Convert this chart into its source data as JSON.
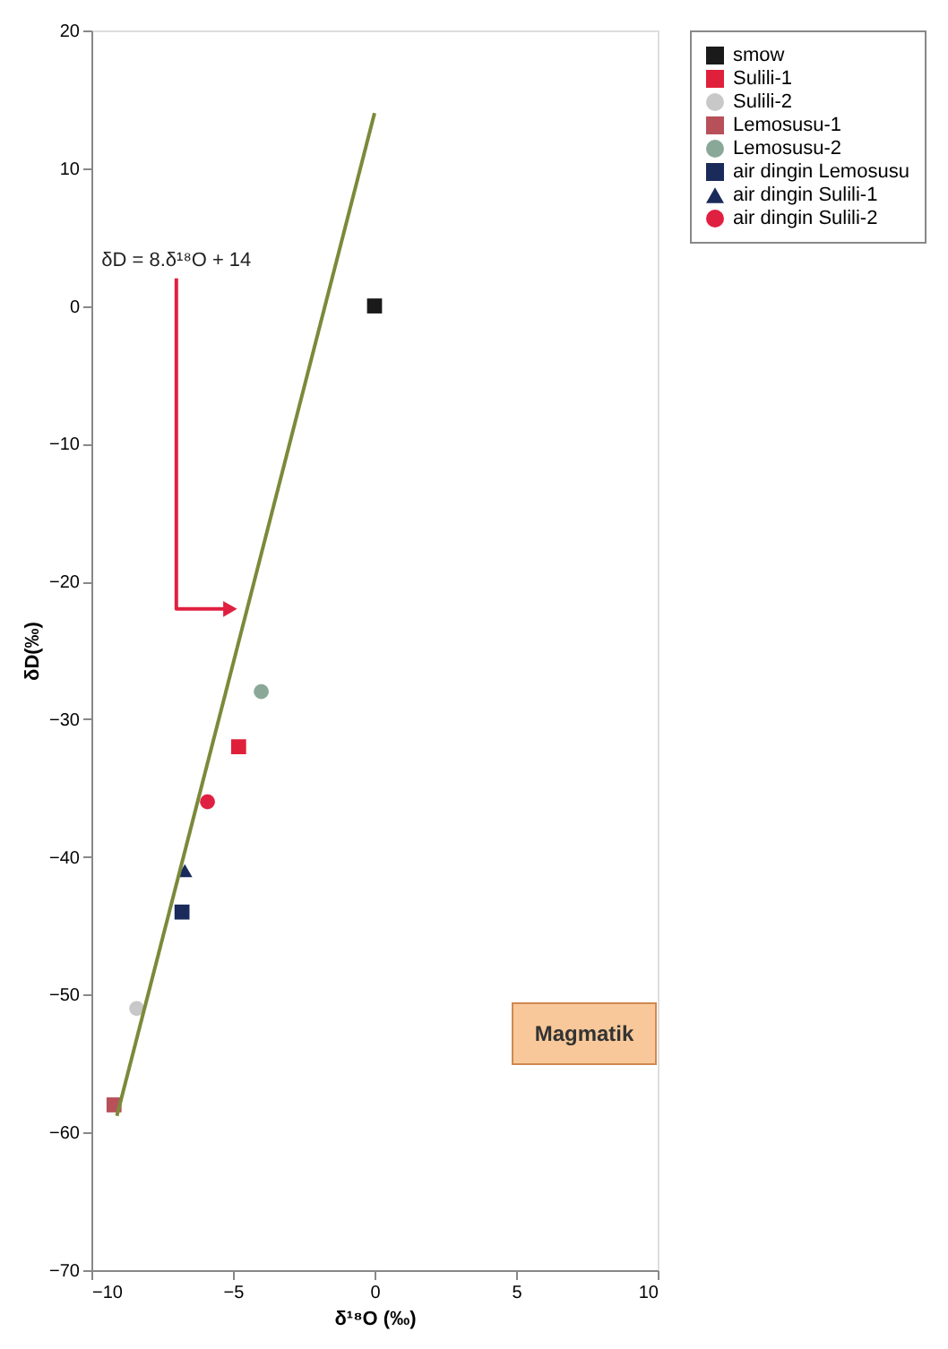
{
  "chart_data": {
    "type": "scatter",
    "xlabel": "δ¹⁸O (‰)",
    "ylabel": "δD(‰)",
    "xlim": [
      -10,
      10
    ],
    "xticks": [
      -10,
      -5,
      0,
      5,
      10
    ],
    "ylim": [
      -70,
      20
    ],
    "yticks": [
      -70,
      -60,
      -50,
      -40,
      -30,
      -20,
      -10,
      0,
      10,
      20
    ],
    "grid": false,
    "legend": "right",
    "series": [
      {
        "name": "smow",
        "color": "#1a1a1a",
        "marker": "square",
        "x": [
          0
        ],
        "values": [
          0
        ]
      },
      {
        "name": "Sulili-1",
        "color": "#e0203a",
        "marker": "square",
        "x": [
          -4.8
        ],
        "values": [
          -32
        ]
      },
      {
        "name": "Sulili-2",
        "color": "#c8c8c8",
        "marker": "circle",
        "x": [
          -8.4
        ],
        "values": [
          -51
        ]
      },
      {
        "name": "Lemosusu-1",
        "color": "#b8505a",
        "marker": "square",
        "x": [
          -9.2
        ],
        "values": [
          -58
        ]
      },
      {
        "name": "Lemosusu-2",
        "color": "#8aa898",
        "marker": "circle",
        "x": [
          -4.0
        ],
        "values": [
          -28
        ]
      },
      {
        "name": "air dingin Lemosusu",
        "color": "#1a2a5a",
        "marker": "square",
        "x": [
          -6.8
        ],
        "values": [
          -44
        ]
      },
      {
        "name": "air dingin Sulili-1",
        "color": "#1a2a5a",
        "marker": "triangle",
        "x": [
          -6.7
        ],
        "values": [
          -41
        ]
      },
      {
        "name": "air dingin Sulili-2",
        "color": "#e02040",
        "marker": "circle",
        "x": [
          -5.9
        ],
        "values": [
          -36
        ]
      },
      {
        "type": "line",
        "color": "#7a8a3a",
        "marker": "none",
        "x": [
          -9.1,
          0
        ],
        "values": [
          -58.8,
          14
        ]
      }
    ],
    "annotations": [
      {
        "text": "δD = 8.δ¹⁸O + 14",
        "x": -5.1,
        "y": -22
      },
      "Magmatik"
    ]
  }
}
